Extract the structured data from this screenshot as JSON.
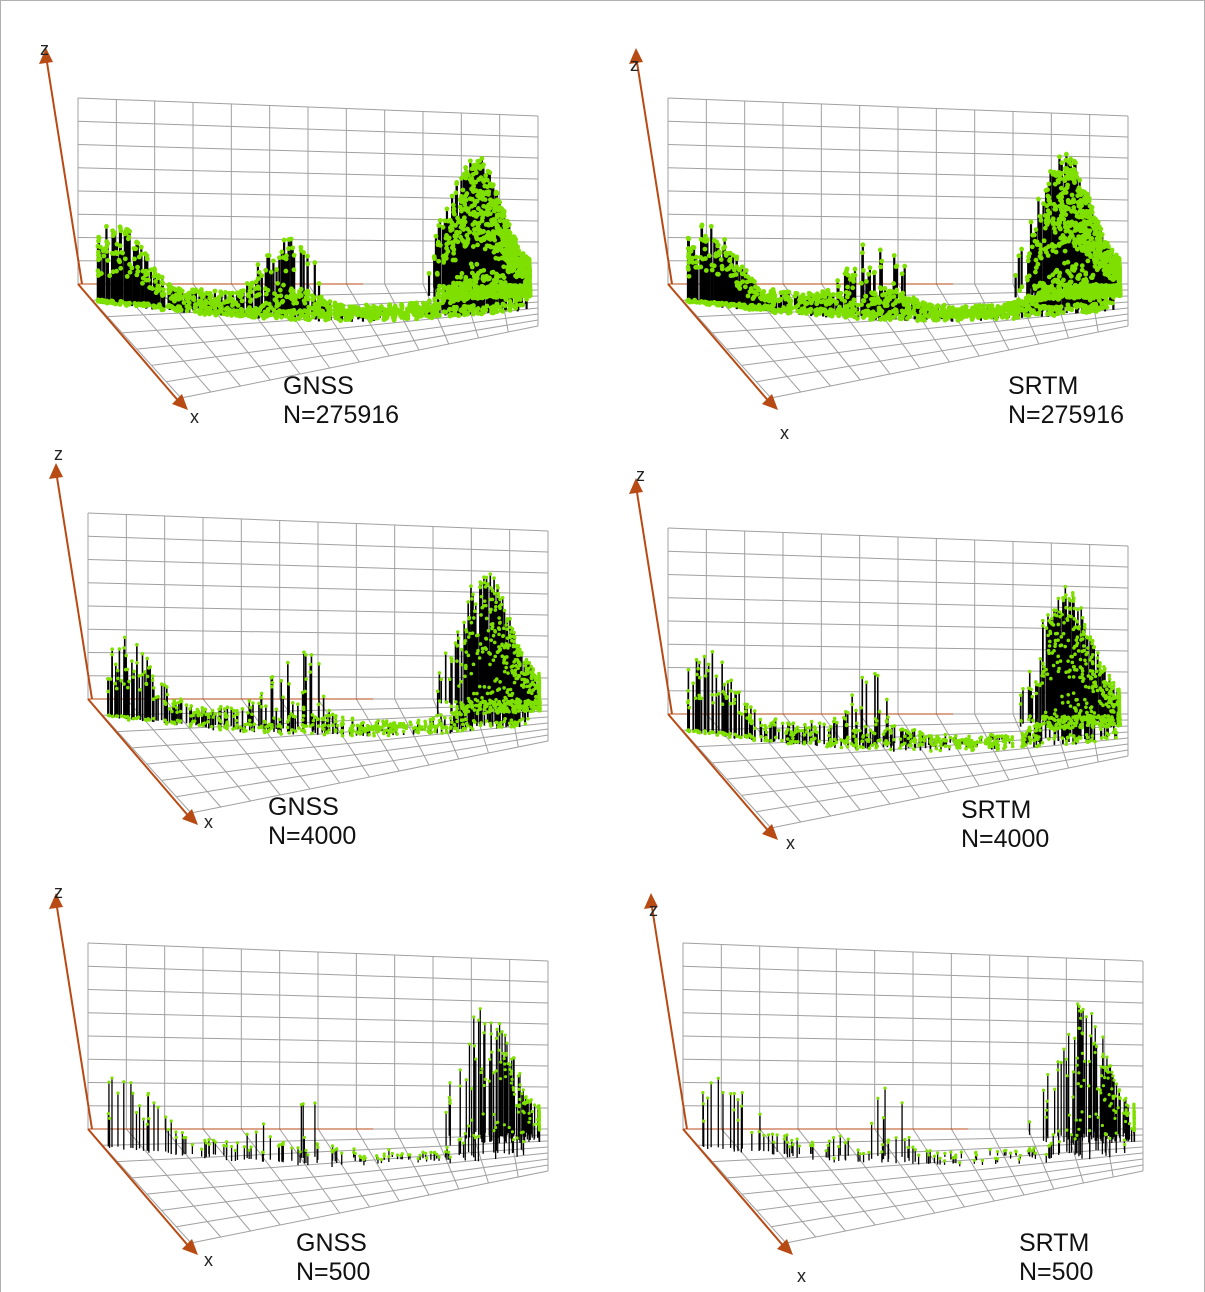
{
  "chart_data": [
    {
      "type": "scatter",
      "dimensions": "3d",
      "source_label": "GNSS",
      "n_label": "N=275916",
      "n": 275916,
      "axis_labels": {
        "z": "z",
        "x": "x"
      },
      "point_color": "#7fe000",
      "stem_color": "#000000",
      "grid": true
    },
    {
      "type": "scatter",
      "dimensions": "3d",
      "source_label": "SRTM",
      "n_label": "N=275916",
      "n": 275916,
      "axis_labels": {
        "z": "z",
        "x": "x"
      },
      "point_color": "#7fe000",
      "stem_color": "#000000",
      "grid": true
    },
    {
      "type": "scatter",
      "dimensions": "3d",
      "source_label": "GNSS",
      "n_label": "N=4000",
      "n": 4000,
      "axis_labels": {
        "z": "z",
        "x": "x"
      },
      "point_color": "#7fe000",
      "stem_color": "#000000",
      "grid": true
    },
    {
      "type": "scatter",
      "dimensions": "3d",
      "source_label": "SRTM",
      "n_label": "N=4000",
      "n": 4000,
      "axis_labels": {
        "z": "z",
        "x": "x"
      },
      "point_color": "#7fe000",
      "stem_color": "#000000",
      "grid": true
    },
    {
      "type": "scatter",
      "dimensions": "3d",
      "source_label": "GNSS",
      "n_label": "N=500",
      "n": 500,
      "axis_labels": {
        "z": "z",
        "x": "x"
      },
      "point_color": "#7fe000",
      "stem_color": "#000000",
      "grid": true
    },
    {
      "type": "scatter",
      "dimensions": "3d",
      "source_label": "SRTM",
      "n_label": "N=500",
      "n": 500,
      "axis_labels": {
        "z": "z",
        "x": "x"
      },
      "point_color": "#7fe000",
      "stem_color": "#000000",
      "grid": true
    }
  ],
  "colors": {
    "grid": "#a0a0a0",
    "axis": "#b84a14",
    "floor_axis": "#b84a14"
  }
}
